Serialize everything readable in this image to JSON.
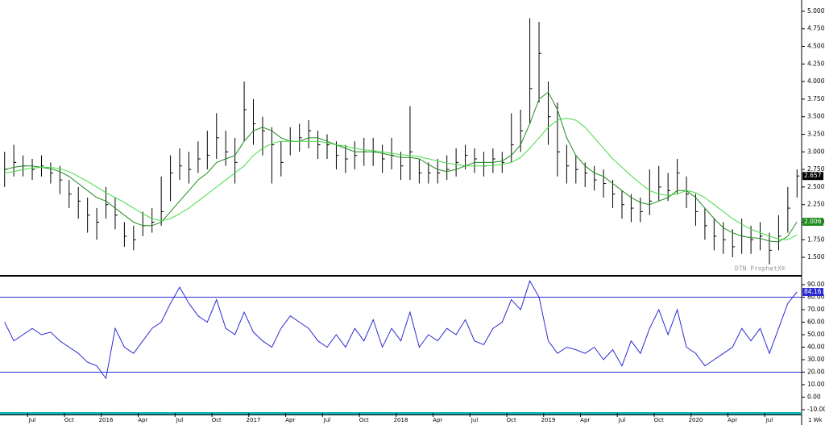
{
  "chart_data": [
    {
      "type": "ohlc",
      "high": [
        3.0,
        3.1,
        2.95,
        2.9,
        2.95,
        2.85,
        2.8,
        2.6,
        2.5,
        2.35,
        2.2,
        2.5,
        2.35,
        2.0,
        1.95,
        2.15,
        2.2,
        2.65,
        2.95,
        3.05,
        3.0,
        3.15,
        3.3,
        3.55,
        3.3,
        3.2,
        4.0,
        3.75,
        3.5,
        3.35,
        3.15,
        3.35,
        3.4,
        3.45,
        3.3,
        3.25,
        3.15,
        3.1,
        3.15,
        3.2,
        3.2,
        3.1,
        3.2,
        3.0,
        3.65,
        2.9,
        2.85,
        2.9,
        2.95,
        3.05,
        3.1,
        3.05,
        3.0,
        3.05,
        3.0,
        3.55,
        3.6,
        4.9,
        4.85,
        4.0,
        3.7,
        3.1,
        2.95,
        2.85,
        2.8,
        2.75,
        2.6,
        2.45,
        2.4,
        2.35,
        2.75,
        2.8,
        2.7,
        2.9,
        2.65,
        2.4,
        2.2,
        2.05,
        2.0,
        1.9,
        2.05,
        1.95,
        2.0,
        1.85,
        2.1,
        2.5,
        2.75
      ],
      "low": [
        2.5,
        2.65,
        2.65,
        2.6,
        2.65,
        2.55,
        2.4,
        2.2,
        2.05,
        1.85,
        1.75,
        2.05,
        1.9,
        1.65,
        1.6,
        1.8,
        1.85,
        1.95,
        2.3,
        2.6,
        2.55,
        2.7,
        2.75,
        2.9,
        2.8,
        2.55,
        3.15,
        3.1,
        2.95,
        2.55,
        2.65,
        2.95,
        3.0,
        3.05,
        2.9,
        2.9,
        2.75,
        2.7,
        2.75,
        2.8,
        2.8,
        2.7,
        2.75,
        2.6,
        2.6,
        2.55,
        2.55,
        2.55,
        2.6,
        2.65,
        2.75,
        2.7,
        2.65,
        2.7,
        2.7,
        2.85,
        3.0,
        3.4,
        3.7,
        3.1,
        2.65,
        2.55,
        2.55,
        2.5,
        2.45,
        2.35,
        2.2,
        2.05,
        2.0,
        2.0,
        2.1,
        2.3,
        2.3,
        2.4,
        2.2,
        1.95,
        1.75,
        1.6,
        1.55,
        1.5,
        1.55,
        1.55,
        1.6,
        1.4,
        1.6,
        1.85,
        2.35
      ],
      "close": [
        2.75,
        2.85,
        2.8,
        2.75,
        2.8,
        2.7,
        2.6,
        2.4,
        2.3,
        2.1,
        2.0,
        2.25,
        2.1,
        1.8,
        1.75,
        1.95,
        2.0,
        2.15,
        2.7,
        2.8,
        2.75,
        2.9,
        2.95,
        3.2,
        3.0,
        2.85,
        3.6,
        3.4,
        3.3,
        3.1,
        2.85,
        3.15,
        3.2,
        3.3,
        3.1,
        3.1,
        2.95,
        2.9,
        2.95,
        3.0,
        3.0,
        2.9,
        2.95,
        2.8,
        3.0,
        2.7,
        2.7,
        2.7,
        2.75,
        2.85,
        2.95,
        2.9,
        2.8,
        2.9,
        2.85,
        3.1,
        3.3,
        3.9,
        4.4,
        3.5,
        3.0,
        2.8,
        2.75,
        2.7,
        2.6,
        2.55,
        2.4,
        2.25,
        2.2,
        2.15,
        2.3,
        2.5,
        2.45,
        2.7,
        2.4,
        2.15,
        1.95,
        1.8,
        1.75,
        1.65,
        1.8,
        1.75,
        1.8,
        1.6,
        1.8,
        2.2,
        2.657
      ],
      "color": "#000000",
      "series": [
        {
          "color": "#1e8c1e",
          "values": [
            2.75,
            2.78,
            2.8,
            2.8,
            2.78,
            2.76,
            2.72,
            2.65,
            2.55,
            2.45,
            2.35,
            2.3,
            2.2,
            2.1,
            2.0,
            1.95,
            1.95,
            2.0,
            2.15,
            2.3,
            2.45,
            2.6,
            2.7,
            2.85,
            2.9,
            2.95,
            3.15,
            3.3,
            3.35,
            3.3,
            3.2,
            3.15,
            3.15,
            3.2,
            3.2,
            3.15,
            3.1,
            3.05,
            3.0,
            3.0,
            3.0,
            2.98,
            2.95,
            2.92,
            2.92,
            2.9,
            2.82,
            2.75,
            2.72,
            2.75,
            2.8,
            2.85,
            2.85,
            2.85,
            2.87,
            2.95,
            3.1,
            3.4,
            3.75,
            3.85,
            3.6,
            3.2,
            2.95,
            2.8,
            2.7,
            2.65,
            2.55,
            2.45,
            2.35,
            2.28,
            2.25,
            2.3,
            2.35,
            2.45,
            2.45,
            2.35,
            2.2,
            2.05,
            1.92,
            1.85,
            1.8,
            1.78,
            1.77,
            1.73,
            1.72,
            1.8,
            2.006
          ]
        },
        {
          "color": "#44dd44",
          "values": [
            2.7,
            2.72,
            2.75,
            2.77,
            2.78,
            2.78,
            2.76,
            2.72,
            2.65,
            2.58,
            2.5,
            2.42,
            2.35,
            2.28,
            2.2,
            2.12,
            2.05,
            2.02,
            2.05,
            2.12,
            2.2,
            2.3,
            2.4,
            2.5,
            2.6,
            2.7,
            2.8,
            2.95,
            3.05,
            3.12,
            3.15,
            3.15,
            3.15,
            3.15,
            3.15,
            3.13,
            3.1,
            3.08,
            3.05,
            3.03,
            3.02,
            3.0,
            2.98,
            2.96,
            2.95,
            2.93,
            2.9,
            2.87,
            2.84,
            2.82,
            2.8,
            2.8,
            2.8,
            2.81,
            2.82,
            2.85,
            2.92,
            3.05,
            3.2,
            3.35,
            3.45,
            3.48,
            3.45,
            3.35,
            3.2,
            3.05,
            2.9,
            2.78,
            2.66,
            2.55,
            2.45,
            2.4,
            2.38,
            2.4,
            2.45,
            2.42,
            2.35,
            2.25,
            2.15,
            2.05,
            1.97,
            1.9,
            1.85,
            1.8,
            1.76,
            1.75,
            1.82
          ]
        }
      ],
      "ylim": [
        1.26,
        5.16
      ],
      "yticks": [
        {
          "value": 1.5,
          "label": "1.500"
        },
        {
          "value": 1.75,
          "label": "1.750"
        },
        {
          "value": 2,
          "label": "2.000"
        },
        {
          "value": 2.25,
          "label": "2.250"
        },
        {
          "value": 2.5,
          "label": "2.500"
        },
        {
          "value": 2.75,
          "label": "2.750"
        },
        {
          "value": 3,
          "label": "3.000"
        },
        {
          "value": 3.25,
          "label": "3.250"
        },
        {
          "value": 3.5,
          "label": "3.500"
        },
        {
          "value": 3.75,
          "label": "3.750"
        },
        {
          "value": 4,
          "label": "4.000"
        },
        {
          "value": 4.25,
          "label": "4.250"
        },
        {
          "value": 4.5,
          "label": "4.500"
        },
        {
          "value": 4.75,
          "label": "4.750"
        },
        {
          "value": 5,
          "label": "5.000"
        }
      ],
      "watermark": "DTN ProphetX®"
    },
    {
      "type": "line",
      "values": [
        60,
        45,
        50,
        55,
        50,
        52,
        45,
        40,
        35,
        28,
        25,
        15,
        55,
        40,
        35,
        45,
        55,
        60,
        75,
        88,
        75,
        65,
        60,
        78,
        55,
        50,
        68,
        52,
        45,
        40,
        55,
        65,
        60,
        55,
        45,
        40,
        50,
        40,
        55,
        45,
        62,
        40,
        55,
        45,
        68,
        40,
        50,
        45,
        55,
        50,
        62,
        45,
        42,
        55,
        60,
        78,
        70,
        93,
        80,
        45,
        35,
        40,
        38,
        35,
        40,
        30,
        38,
        25,
        45,
        35,
        55,
        70,
        50,
        70,
        40,
        35,
        25,
        30,
        35,
        40,
        55,
        45,
        55,
        35,
        55,
        75,
        84.16
      ],
      "color": "#2b2bd0",
      "categories": [
        null,
        null,
        null,
        "Jul",
        null,
        null,
        null,
        "Oct",
        null,
        null,
        null,
        "2016",
        null,
        null,
        null,
        "Apr",
        null,
        null,
        null,
        "Jul",
        null,
        null,
        null,
        "Oct",
        null,
        null,
        null,
        "2017",
        null,
        null,
        null,
        "Apr",
        null,
        null,
        null,
        "Jul",
        null,
        null,
        null,
        "Oct",
        null,
        null,
        null,
        "2018",
        null,
        null,
        null,
        "Apr",
        null,
        null,
        null,
        "Jul",
        null,
        null,
        null,
        "Oct",
        null,
        null,
        null,
        "2019",
        null,
        null,
        null,
        "Apr",
        null,
        null,
        null,
        "Jul",
        null,
        null,
        null,
        "Oct",
        null,
        null,
        null,
        "2020",
        null,
        null,
        null,
        "Apr",
        null,
        null,
        null,
        "Jul",
        null,
        null,
        null
      ],
      "ylim": [
        -12.6,
        95.8
      ],
      "yticks": [
        {
          "value": -10,
          "label": "-10.00"
        },
        {
          "value": 0,
          "label": "0.00"
        },
        {
          "value": 10,
          "label": "10.00"
        },
        {
          "value": 20,
          "label": "20.00"
        },
        {
          "value": 30,
          "label": "30.00"
        },
        {
          "value": 40,
          "label": "40.00"
        },
        {
          "value": 50,
          "label": "50.00"
        },
        {
          "value": 60,
          "label": "60.00"
        },
        {
          "value": 70,
          "label": "70.00"
        },
        {
          "value": 80,
          "label": "80.00"
        },
        {
          "value": 90,
          "label": "90.00"
        }
      ],
      "reference_lines": [
        80,
        20
      ],
      "period_label": "1 Wk"
    }
  ]
}
